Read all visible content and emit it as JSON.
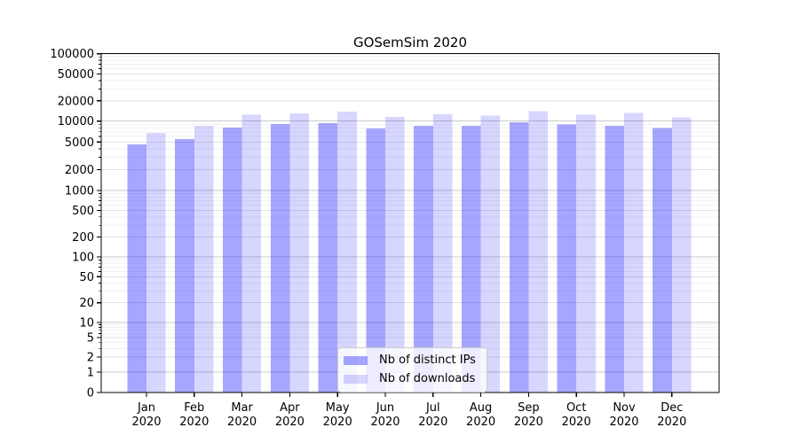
{
  "figure": {
    "background": "#ffffff",
    "axis_color": "#000000",
    "gridline_major_color": "#c9c9c9",
    "gridline_mid_color": "#e2e2e2",
    "gridline_minor_color": "#f2f2f2"
  },
  "chart_data": {
    "type": "bar",
    "title": "GOSemSim 2020",
    "categories": [
      "Jan",
      "Feb",
      "Mar",
      "Apr",
      "May",
      "Jun",
      "Jul",
      "Aug",
      "Sep",
      "Oct",
      "Nov",
      "Dec"
    ],
    "category_year": "2020",
    "series": [
      {
        "name": "Nb of distinct IPs",
        "color": "#0000ff59",
        "values": [
          4600,
          5500,
          8100,
          9100,
          9400,
          7800,
          8500,
          8500,
          9600,
          8900,
          8600,
          8000
        ]
      },
      {
        "name": "Nb of downloads",
        "color": "#0000ff29",
        "values": [
          6800,
          8600,
          12500,
          13000,
          13800,
          11500,
          12600,
          12000,
          14100,
          12500,
          13300,
          11300
        ]
      }
    ],
    "xlabel": "",
    "ylabel": "",
    "yscale": "symlog",
    "ylim": [
      0,
      100000
    ],
    "y_ticks": [
      0,
      1,
      2,
      5,
      10,
      20,
      50,
      100,
      200,
      500,
      1000,
      2000,
      5000,
      10000,
      20000,
      50000,
      100000
    ],
    "grid": "on",
    "legend_position": "lower-center"
  }
}
